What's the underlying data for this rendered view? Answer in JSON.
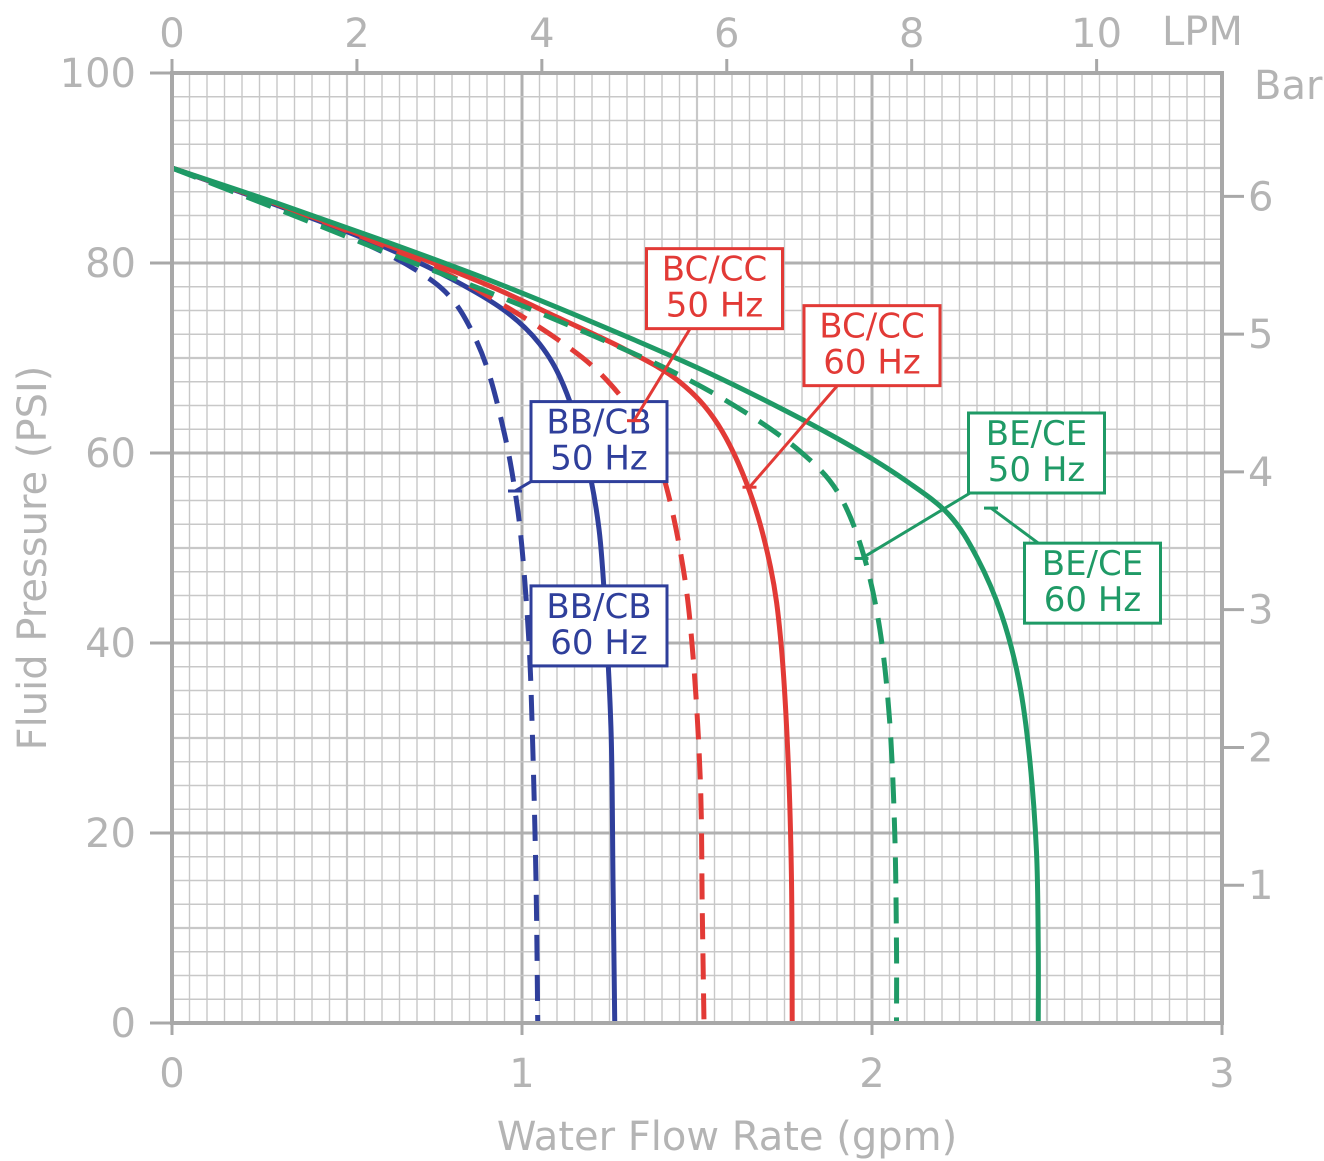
{
  "chart_data": {
    "type": "line",
    "xlabel": "Water Flow Rate (gpm)",
    "ylabel": "Fluid Pressure (PSI)",
    "xlim": [
      0,
      3
    ],
    "ylim": [
      0,
      100
    ],
    "x_ticks": [
      "0",
      "1",
      "2",
      "3"
    ],
    "y_ticks": [
      "0",
      "20",
      "40",
      "60",
      "80",
      "100"
    ],
    "top_axis": {
      "unit": "LPM",
      "range": [
        0,
        11.356
      ],
      "ticks": [
        "0",
        "2",
        "4",
        "6",
        "8",
        "10"
      ]
    },
    "right_axis": {
      "unit": "Bar",
      "range": [
        0,
        6.895
      ],
      "ticks": [
        "1",
        "2",
        "3",
        "4",
        "5",
        "6"
      ]
    },
    "grid": true,
    "colors": {
      "blue": "#2f3f9b",
      "red": "#e23a36",
      "green": "#1f9a66",
      "grid": "#c8c8c8",
      "grid_major": "#b0b0b0"
    },
    "series": [
      {
        "name": "BB/CB 50 Hz",
        "color": "#2f3f9b",
        "dashed": true,
        "points": [
          [
            0,
            90
          ],
          [
            0.2,
            87.3
          ],
          [
            0.4,
            84.5
          ],
          [
            0.6,
            81.2
          ],
          [
            0.7,
            79.2
          ],
          [
            0.78,
            77
          ],
          [
            0.84,
            74
          ],
          [
            0.9,
            69
          ],
          [
            0.95,
            62
          ],
          [
            0.98,
            56
          ],
          [
            1.0,
            50
          ],
          [
            1.02,
            40
          ],
          [
            1.03,
            30
          ],
          [
            1.04,
            15
          ],
          [
            1.045,
            0
          ]
        ]
      },
      {
        "name": "BB/CB 60 Hz",
        "color": "#2f3f9b",
        "dashed": false,
        "points": [
          [
            0,
            90
          ],
          [
            0.2,
            87.4
          ],
          [
            0.4,
            84.7
          ],
          [
            0.6,
            81.8
          ],
          [
            0.8,
            78.3
          ],
          [
            0.95,
            75
          ],
          [
            1.05,
            71.5
          ],
          [
            1.12,
            67
          ],
          [
            1.18,
            60
          ],
          [
            1.22,
            52
          ],
          [
            1.24,
            42
          ],
          [
            1.255,
            30
          ],
          [
            1.26,
            15
          ],
          [
            1.265,
            0
          ]
        ]
      },
      {
        "name": "BC/CC 50 Hz",
        "color": "#e23a36",
        "dashed": true,
        "points": [
          [
            0,
            90
          ],
          [
            0.2,
            87.4
          ],
          [
            0.4,
            84.8
          ],
          [
            0.6,
            81.9
          ],
          [
            0.8,
            78.6
          ],
          [
            0.95,
            75.5
          ],
          [
            1.1,
            72
          ],
          [
            1.22,
            68.5
          ],
          [
            1.32,
            64
          ],
          [
            1.4,
            58
          ],
          [
            1.46,
            48
          ],
          [
            1.49,
            38
          ],
          [
            1.51,
            25
          ],
          [
            1.515,
            12
          ],
          [
            1.52,
            0
          ]
        ]
      },
      {
        "name": "BC/CC 60 Hz",
        "color": "#e23a36",
        "dashed": false,
        "points": [
          [
            0,
            90
          ],
          [
            0.3,
            86.2
          ],
          [
            0.6,
            82.1
          ],
          [
            0.9,
            77.7
          ],
          [
            1.1,
            74.3
          ],
          [
            1.3,
            70.8
          ],
          [
            1.45,
            67.5
          ],
          [
            1.56,
            63
          ],
          [
            1.65,
            56
          ],
          [
            1.71,
            48
          ],
          [
            1.74,
            40
          ],
          [
            1.76,
            28
          ],
          [
            1.77,
            15
          ],
          [
            1.772,
            0
          ]
        ]
      },
      {
        "name": "BE/CE 50 Hz",
        "color": "#1f9a66",
        "dashed": true,
        "points": [
          [
            0,
            90
          ],
          [
            0.3,
            85.7
          ],
          [
            0.6,
            81.3
          ],
          [
            0.9,
            77
          ],
          [
            1.2,
            72.4
          ],
          [
            1.45,
            68.2
          ],
          [
            1.65,
            64
          ],
          [
            1.8,
            60
          ],
          [
            1.9,
            56
          ],
          [
            1.97,
            50
          ],
          [
            2.02,
            42
          ],
          [
            2.05,
            32
          ],
          [
            2.065,
            20
          ],
          [
            2.07,
            8
          ],
          [
            2.07,
            0
          ]
        ]
      },
      {
        "name": "BE/CE 60 Hz",
        "color": "#1f9a66",
        "dashed": false,
        "points": [
          [
            0,
            90
          ],
          [
            0.3,
            86.3
          ],
          [
            0.6,
            82.4
          ],
          [
            0.9,
            78.3
          ],
          [
            1.2,
            73.8
          ],
          [
            1.5,
            69
          ],
          [
            1.75,
            64.5
          ],
          [
            1.95,
            60.5
          ],
          [
            2.1,
            57
          ],
          [
            2.22,
            53.5
          ],
          [
            2.3,
            49
          ],
          [
            2.37,
            43
          ],
          [
            2.42,
            36
          ],
          [
            2.45,
            28
          ],
          [
            2.47,
            18
          ],
          [
            2.475,
            8
          ],
          [
            2.475,
            0
          ]
        ]
      }
    ],
    "callouts": [
      {
        "lines": [
          "BB/CB",
          "50 Hz"
        ],
        "color": "#2f3f9b",
        "box": [
          1.22,
          61.2
        ],
        "anchor": [
          0.98,
          56
        ]
      },
      {
        "lines": [
          "BB/CB",
          "60 Hz"
        ],
        "color": "#2f3f9b",
        "box": [
          1.22,
          41.8
        ],
        "anchor": [
          1.245,
          39.6
        ]
      },
      {
        "lines": [
          "BC/CC",
          "50 Hz"
        ],
        "color": "#e23a36",
        "box": [
          1.55,
          77.3
        ],
        "anchor": [
          1.32,
          63.4
        ]
      },
      {
        "lines": [
          "BC/CC",
          "60 Hz"
        ],
        "color": "#e23a36",
        "box": [
          2.0,
          71.3
        ],
        "anchor": [
          1.65,
          56.4
        ]
      },
      {
        "lines": [
          "BE/CE",
          "50 Hz"
        ],
        "color": "#1f9a66",
        "box": [
          2.47,
          60.0
        ],
        "anchor": [
          1.97,
          48.9
        ]
      },
      {
        "lines": [
          "BE/CE",
          "60 Hz"
        ],
        "color": "#1f9a66",
        "box": [
          2.63,
          46.3
        ],
        "anchor": [
          2.34,
          54.2
        ]
      }
    ]
  }
}
